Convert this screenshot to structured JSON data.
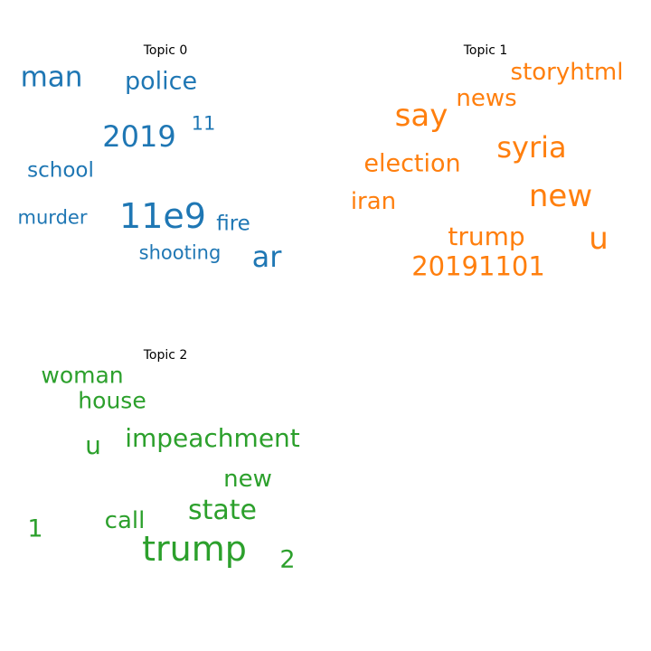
{
  "chart_data": {
    "type": "wordcloud",
    "topics": [
      {
        "title": "Topic 0",
        "color": "#1f77b4",
        "words": [
          "man",
          "police",
          "2019",
          "11",
          "school",
          "11e9",
          "fire",
          "murder",
          "shooting",
          "ar"
        ]
      },
      {
        "title": "Topic 1",
        "color": "#ff7f0e",
        "words": [
          "storyhtml",
          "news",
          "say",
          "syria",
          "election",
          "new",
          "iran",
          "u",
          "trump",
          "20191101"
        ]
      },
      {
        "title": "Topic 2",
        "color": "#2ca02c",
        "words": [
          "woman",
          "house",
          "impeachment",
          "u",
          "new",
          "state",
          "call",
          "1",
          "trump",
          "2"
        ]
      }
    ]
  }
}
